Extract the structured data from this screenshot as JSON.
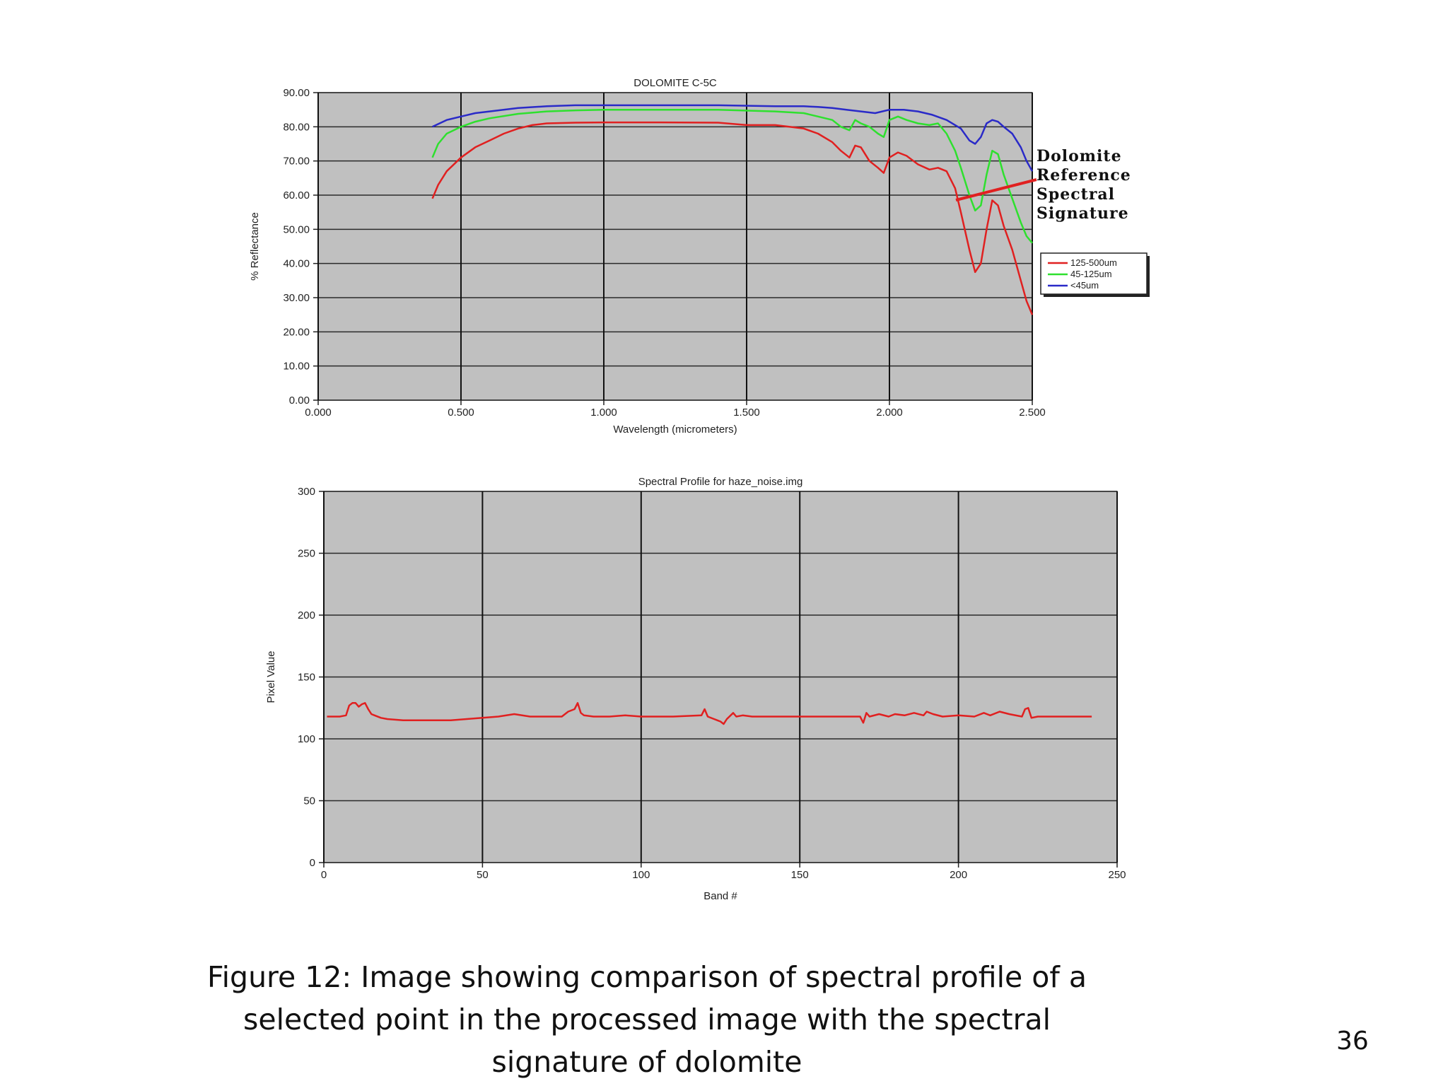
{
  "caption": "Figure 12: Image showing comparison of spectral profile of a selected point in the processed image with the spectral signature of dolomite",
  "page_number": "36",
  "annotation": {
    "lines": [
      "Dolomite",
      "Reference",
      "Spectral",
      "Signature"
    ],
    "arrow_color": "#e02020"
  },
  "chart_data": [
    {
      "type": "line",
      "title": "DOLOMITE C-5C",
      "xlabel": "Wavelength (micrometers)",
      "ylabel": "% Reflectance",
      "xlim": [
        0,
        2.5
      ],
      "ylim": [
        0,
        90
      ],
      "x_ticks": [
        "0.000",
        "0.500",
        "1.000",
        "1.500",
        "2.000",
        "2.500"
      ],
      "y_ticks": [
        "0.00",
        "10.00",
        "20.00",
        "30.00",
        "40.00",
        "50.00",
        "60.00",
        "70.00",
        "80.00",
        "90.00"
      ],
      "x_tick_values": [
        0,
        0.5,
        1.0,
        1.5,
        2.0,
        2.5
      ],
      "y_tick_values": [
        0,
        10,
        20,
        30,
        40,
        50,
        60,
        70,
        80,
        90
      ],
      "background": "#c0c0c0",
      "grid": true,
      "legend_position": "right",
      "series": [
        {
          "name": "125-500um",
          "color": "#e02020",
          "x": [
            0.4,
            0.42,
            0.45,
            0.5,
            0.55,
            0.6,
            0.65,
            0.7,
            0.75,
            0.8,
            0.9,
            1.0,
            1.2,
            1.4,
            1.5,
            1.6,
            1.7,
            1.75,
            1.8,
            1.83,
            1.86,
            1.88,
            1.9,
            1.93,
            1.96,
            1.98,
            2.0,
            2.03,
            2.06,
            2.1,
            2.14,
            2.17,
            2.2,
            2.23,
            2.25,
            2.28,
            2.3,
            2.32,
            2.34,
            2.36,
            2.38,
            2.4,
            2.43,
            2.46,
            2.48,
            2.5
          ],
          "values": [
            59,
            63,
            67,
            71,
            74,
            76,
            78,
            79.5,
            80.5,
            81,
            81.2,
            81.3,
            81.3,
            81.2,
            80.5,
            80.5,
            79.5,
            78,
            75.5,
            73,
            71,
            74.5,
            74,
            70,
            68,
            66.5,
            71,
            72.5,
            71.5,
            69,
            67.5,
            68,
            67,
            62,
            55,
            44,
            37.5,
            40,
            50,
            58.5,
            57,
            51,
            44,
            35,
            29,
            25
          ]
        },
        {
          "name": "45-125um",
          "color": "#2ee02e",
          "x": [
            0.4,
            0.42,
            0.45,
            0.5,
            0.55,
            0.6,
            0.7,
            0.8,
            0.9,
            1.0,
            1.2,
            1.4,
            1.6,
            1.7,
            1.75,
            1.8,
            1.83,
            1.86,
            1.88,
            1.9,
            1.93,
            1.96,
            1.98,
            2.0,
            2.03,
            2.06,
            2.1,
            2.14,
            2.17,
            2.2,
            2.23,
            2.25,
            2.28,
            2.3,
            2.32,
            2.34,
            2.36,
            2.38,
            2.4,
            2.43,
            2.46,
            2.48,
            2.5
          ],
          "values": [
            71,
            75,
            78,
            80,
            81.5,
            82.5,
            83.8,
            84.5,
            84.8,
            85,
            85,
            85,
            84.5,
            84,
            83,
            82,
            80,
            79,
            82,
            81,
            80,
            78,
            77,
            82,
            83,
            82,
            81,
            80.5,
            81,
            78,
            73,
            68,
            60,
            55.5,
            57,
            66,
            73,
            72,
            66,
            59,
            52,
            48,
            46
          ]
        },
        {
          "name": "<45um",
          "color": "#2a2ac8",
          "x": [
            0.4,
            0.45,
            0.5,
            0.55,
            0.6,
            0.7,
            0.8,
            0.9,
            1.0,
            1.2,
            1.4,
            1.6,
            1.7,
            1.75,
            1.8,
            1.85,
            1.9,
            1.95,
            2.0,
            2.05,
            2.1,
            2.15,
            2.2,
            2.25,
            2.28,
            2.3,
            2.32,
            2.34,
            2.36,
            2.38,
            2.4,
            2.43,
            2.46,
            2.48,
            2.5
          ],
          "values": [
            80,
            82,
            83,
            84,
            84.5,
            85.5,
            86,
            86.3,
            86.3,
            86.3,
            86.3,
            86,
            86,
            85.8,
            85.5,
            85,
            84.5,
            84,
            85,
            85,
            84.5,
            83.5,
            82,
            79.5,
            76,
            75,
            77,
            81,
            82,
            81.5,
            80,
            78,
            74,
            70,
            67
          ]
        }
      ]
    },
    {
      "type": "line",
      "title": "Spectral Profile for haze_noise.img",
      "xlabel": "Band #",
      "ylabel": "Pixel Value",
      "xlim": [
        0,
        250
      ],
      "ylim": [
        0,
        300
      ],
      "x_ticks": [
        "0",
        "50",
        "100",
        "150",
        "200",
        "250"
      ],
      "y_ticks": [
        "0",
        "50",
        "100",
        "150",
        "200",
        "250",
        "300"
      ],
      "x_tick_values": [
        0,
        50,
        100,
        150,
        200,
        250
      ],
      "y_tick_values": [
        0,
        50,
        100,
        150,
        200,
        250,
        300
      ],
      "background": "#c0c0c0",
      "grid": true,
      "series": [
        {
          "color": "#e02020",
          "x": [
            1,
            5,
            7,
            8,
            9,
            10,
            11,
            12,
            13,
            14,
            15,
            16,
            18,
            20,
            25,
            30,
            35,
            40,
            45,
            50,
            55,
            60,
            65,
            70,
            75,
            77,
            79,
            80,
            81,
            82,
            85,
            90,
            95,
            100,
            110,
            119,
            120,
            121,
            123,
            125,
            126,
            127,
            129,
            130,
            132,
            135,
            140,
            145,
            150,
            160,
            169,
            170,
            171,
            172,
            175,
            178,
            180,
            183,
            186,
            189,
            190,
            192,
            195,
            200,
            205,
            208,
            210,
            213,
            216,
            220,
            221,
            222,
            223,
            225,
            230,
            242
          ],
          "values": [
            118,
            118,
            119,
            127,
            129,
            129,
            126,
            128,
            129,
            124,
            120,
            119,
            117,
            116,
            115,
            115,
            115,
            115,
            116,
            117,
            118,
            120,
            118,
            118,
            118,
            122,
            124,
            129,
            121,
            119,
            118,
            118,
            119,
            118,
            118,
            119,
            124,
            118,
            116,
            114,
            112,
            116,
            121,
            118,
            119,
            118,
            118,
            118,
            118,
            118,
            118,
            113,
            121,
            118,
            120,
            118,
            120,
            119,
            121,
            119,
            122,
            120,
            118,
            119,
            118,
            121,
            119,
            122,
            120,
            118,
            124,
            125,
            117,
            118,
            118,
            118
          ]
        }
      ]
    }
  ]
}
